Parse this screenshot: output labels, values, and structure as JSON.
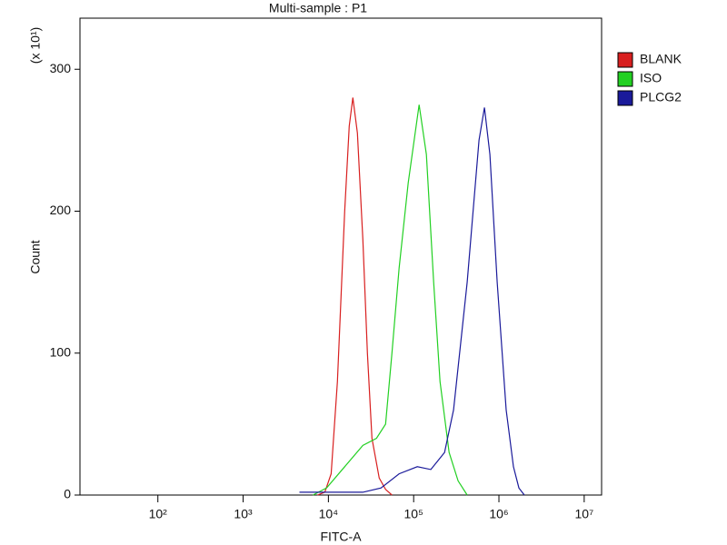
{
  "chart_data": {
    "type": "line",
    "title": "Multi-sample : P1",
    "x_label": "FITC-A",
    "y_label": "Count",
    "y_multiplier": "(x 10¹)",
    "x_log": true,
    "xlim": [
      12.2,
      16000000
    ],
    "ylim": [
      0,
      336
    ],
    "xticks": [
      {
        "value": 100,
        "label": "10²"
      },
      {
        "value": 1000,
        "label": "10³"
      },
      {
        "value": 10000,
        "label": "10⁴"
      },
      {
        "value": 100000,
        "label": "10⁵"
      },
      {
        "value": 1000000,
        "label": "10⁶"
      },
      {
        "value": 10000000,
        "label": "10⁷"
      }
    ],
    "yticks": [
      0,
      100,
      200,
      300
    ],
    "legend": "right",
    "series": [
      {
        "name": "BLANK",
        "color": "#d81f1f",
        "x": [
          7450,
          9060,
          10760,
          12770,
          15530,
          17570,
          19370,
          21880,
          25340,
          28650,
          32400,
          39440,
          46800,
          55600
        ],
        "values": [
          0,
          2,
          15,
          80,
          200,
          260,
          280,
          255,
          180,
          100,
          40,
          12,
          4,
          0
        ]
      },
      {
        "name": "ISO",
        "color": "#22d022",
        "x": [
          6590,
          9530,
          15530,
          25340,
          36630,
          46800,
          55600,
          67600,
          86300,
          115800,
          140900,
          171400,
          203700,
          260200,
          332000,
          424300
        ],
        "values": [
          0,
          5,
          20,
          35,
          40,
          50,
          100,
          160,
          220,
          275,
          240,
          150,
          80,
          30,
          10,
          0
        ]
      },
      {
        "name": "PLCG2",
        "color": "#1a1a9a",
        "x": [
          4570,
          25340,
          41400,
          67600,
          110400,
          159200,
          230200,
          294000,
          424300,
          583500,
          676000,
          783000,
          953000,
          1216000,
          1479000,
          1714000,
          1986000
        ],
        "values": [
          2,
          2,
          5,
          15,
          20,
          18,
          30,
          60,
          150,
          250,
          273,
          240,
          150,
          60,
          20,
          5,
          0
        ]
      }
    ]
  }
}
